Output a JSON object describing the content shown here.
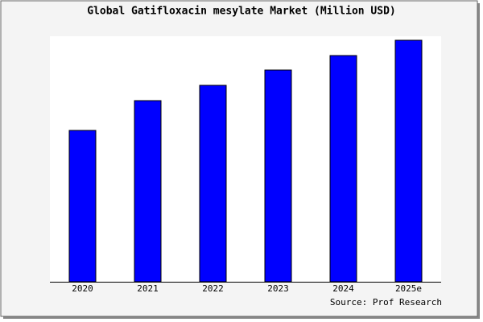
{
  "chart_data": {
    "type": "bar",
    "title": "Global Gatifloxacin mesylate Market (Million USD)",
    "categories": [
      "2020",
      "2021",
      "2022",
      "2023",
      "2024",
      "2025e"
    ],
    "values": [
      188,
      225,
      244,
      263,
      281,
      300
    ],
    "color": "#0000ff",
    "ylim": [
      0,
      305
    ],
    "source": "Source: Prof Research"
  }
}
